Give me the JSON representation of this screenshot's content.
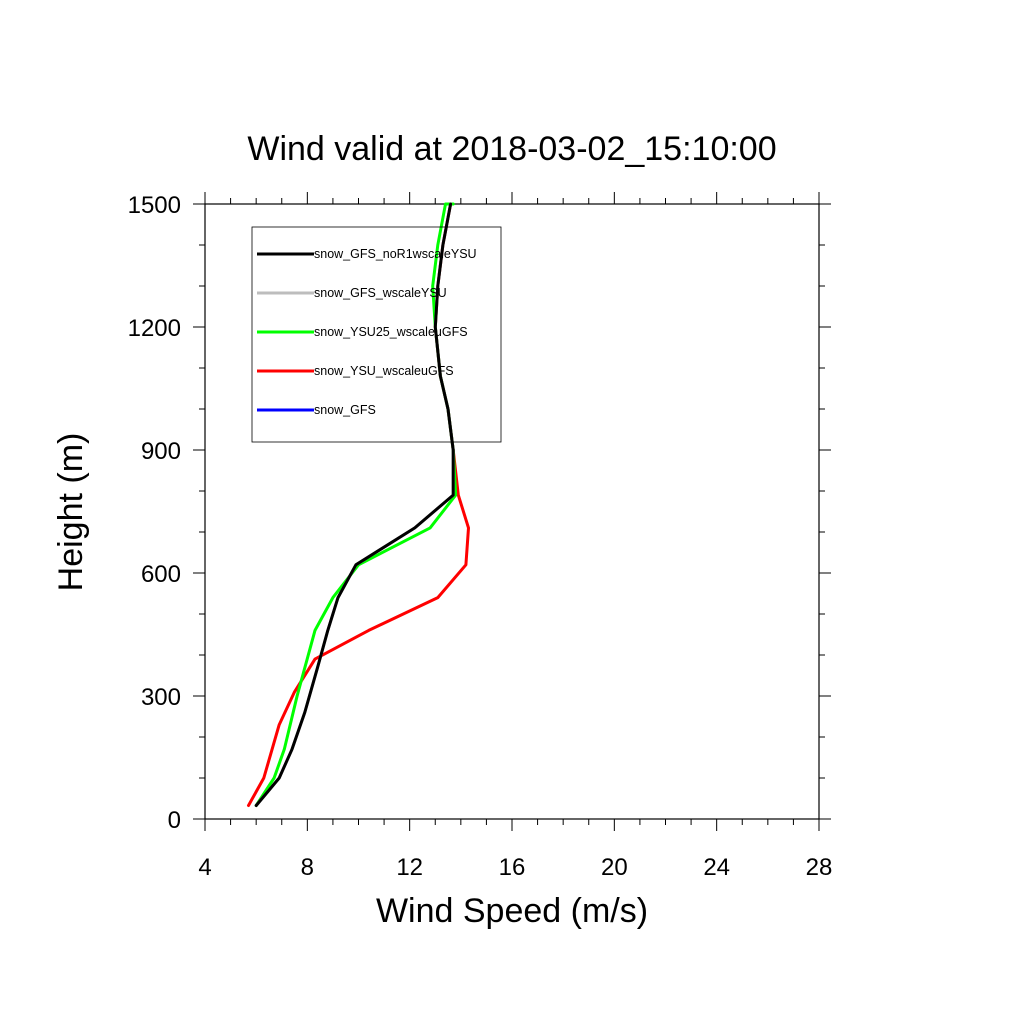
{
  "chart_data": {
    "type": "line",
    "title": "Wind valid at 2018-03-02_15:10:00",
    "xlabel": "Wind Speed (m/s)",
    "ylabel": "Height (m)",
    "xlim": [
      4,
      28
    ],
    "ylim": [
      0,
      1500
    ],
    "xticks": [
      4,
      8,
      12,
      16,
      20,
      24,
      28
    ],
    "yticks": [
      0,
      300,
      600,
      900,
      1200,
      1500
    ],
    "grid": false,
    "legend_position": "top-left",
    "series": [
      {
        "name": "snow_GFS_noR1wscaleYSU",
        "color": "#000000",
        "x": [
          6.0,
          6.9,
          7.4,
          7.9,
          8.4,
          8.8,
          9.2,
          9.9,
          12.2,
          13.7,
          13.7,
          13.5,
          13.2,
          13.0,
          13.1,
          13.3,
          13.6
        ],
        "y": [
          33,
          100,
          170,
          260,
          370,
          460,
          540,
          620,
          710,
          790,
          900,
          1000,
          1080,
          1200,
          1300,
          1400,
          1500
        ]
      },
      {
        "name": "snow_GFS_wscaleYSU",
        "color": "#bdbdbd",
        "x": [
          6.0,
          6.9,
          7.4,
          7.9,
          8.4,
          8.8,
          9.2,
          9.9,
          12.2,
          13.7,
          13.7,
          13.5,
          13.2,
          13.0,
          13.1,
          13.3,
          13.6
        ],
        "y": [
          33,
          100,
          170,
          260,
          370,
          460,
          540,
          620,
          710,
          790,
          900,
          1000,
          1080,
          1200,
          1300,
          1400,
          1500
        ]
      },
      {
        "name": "snow_YSU25_wscaleuGFS",
        "color": "#00ff00",
        "x": [
          6.0,
          6.7,
          7.1,
          7.6,
          8.3,
          9.0,
          10.0,
          12.8,
          13.8,
          13.7,
          13.5,
          13.2,
          13.0,
          12.9,
          13.1,
          13.4,
          13.7
        ],
        "y": [
          33,
          100,
          170,
          300,
          460,
          540,
          620,
          710,
          790,
          900,
          1000,
          1080,
          1200,
          1300,
          1400,
          1500,
          1500
        ]
      },
      {
        "name": "snow_YSU_wscaleuGFS",
        "color": "#ff0000",
        "x": [
          5.7,
          6.3,
          6.9,
          7.5,
          8.3,
          10.4,
          13.1,
          14.2,
          14.3,
          13.9,
          13.7,
          13.5,
          13.2,
          13.0,
          13.1,
          13.3,
          13.6
        ],
        "y": [
          33,
          100,
          230,
          310,
          390,
          460,
          540,
          620,
          710,
          790,
          900,
          1000,
          1080,
          1200,
          1300,
          1400,
          1500
        ]
      },
      {
        "name": "snow_GFS",
        "color": "#0000ff",
        "x": [],
        "y": []
      }
    ]
  }
}
